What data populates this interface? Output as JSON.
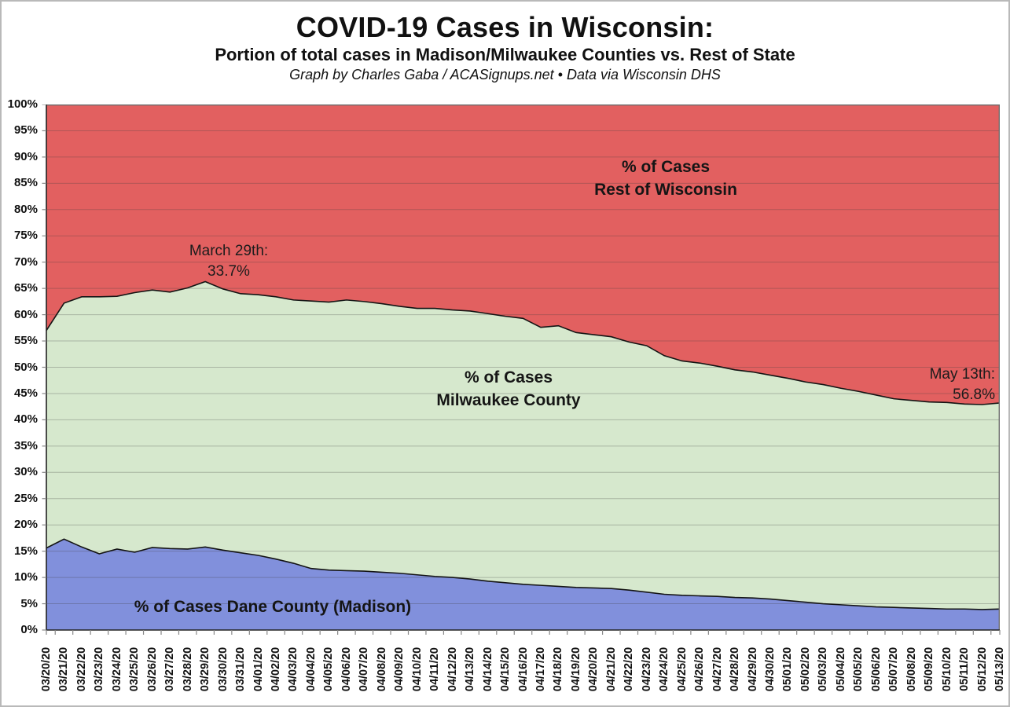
{
  "header": {
    "title": "COVID-19 Cases in Wisconsin:",
    "subtitle": "Portion of total cases in Madison/Milwaukee Counties vs. Rest of State",
    "credit": "Graph by Charles Gaba / ACASignups.net  •  Data via Wisconsin DHS"
  },
  "labels": {
    "rest": {
      "line1": "% of Cases",
      "line2": "Rest of Wisconsin"
    },
    "milwaukee": {
      "line1": "% of Cases",
      "line2": "Milwaukee County"
    },
    "dane": {
      "text": "% of Cases Dane County (Madison)"
    }
  },
  "annotations": {
    "march29": {
      "line1": "March 29th:",
      "line2": "33.7%"
    },
    "may13": {
      "line1": "May 13th:",
      "line2": "56.8%"
    }
  },
  "chart_data": {
    "type": "area",
    "stacked": true,
    "grid": true,
    "legend_position": "none",
    "x": [
      "03/20/20",
      "03/21/20",
      "03/22/20",
      "03/23/20",
      "03/24/20",
      "03/25/20",
      "03/26/20",
      "03/27/20",
      "03/28/20",
      "03/29/20",
      "03/30/20",
      "03/31/20",
      "04/01/20",
      "04/02/20",
      "04/03/20",
      "04/04/20",
      "04/05/20",
      "04/06/20",
      "04/07/20",
      "04/08/20",
      "04/09/20",
      "04/10/20",
      "04/11/20",
      "04/12/20",
      "04/13/20",
      "04/14/20",
      "04/15/20",
      "04/16/20",
      "04/17/20",
      "04/18/20",
      "04/19/20",
      "04/20/20",
      "04/21/20",
      "04/22/20",
      "04/23/20",
      "04/24/20",
      "04/25/20",
      "04/26/20",
      "04/27/20",
      "04/28/20",
      "04/29/20",
      "04/30/20",
      "05/01/20",
      "05/02/20",
      "05/03/20",
      "05/04/20",
      "05/05/20",
      "05/06/20",
      "05/07/20",
      "05/08/20",
      "05/09/20",
      "05/10/20",
      "05/11/20",
      "05/12/20",
      "05/13/20"
    ],
    "series": [
      {
        "name": "% of Cases Dane County (Madison)",
        "color": "#8190dc",
        "values": [
          15.6,
          17.3,
          15.8,
          14.5,
          15.4,
          14.8,
          15.7,
          15.5,
          15.4,
          15.8,
          15.2,
          14.7,
          14.2,
          13.5,
          12.7,
          11.7,
          11.4,
          11.3,
          11.2,
          11.0,
          10.8,
          10.5,
          10.2,
          10.0,
          9.7,
          9.3,
          9.0,
          8.7,
          8.5,
          8.3,
          8.1,
          8.0,
          7.9,
          7.6,
          7.2,
          6.8,
          6.6,
          6.5,
          6.4,
          6.2,
          6.1,
          5.9,
          5.6,
          5.3,
          5.0,
          4.8,
          4.6,
          4.4,
          4.3,
          4.2,
          4.1,
          4.0,
          4.0,
          3.9,
          4.0
        ]
      },
      {
        "name": "% of Cases Milwaukee County",
        "color": "#d6e8cd",
        "values": [
          41.4,
          44.9,
          47.6,
          48.9,
          48.1,
          49.4,
          49.0,
          48.8,
          49.7,
          50.5,
          49.7,
          49.3,
          49.6,
          49.9,
          50.1,
          50.9,
          51.0,
          51.5,
          51.3,
          51.1,
          50.8,
          50.7,
          51.0,
          50.9,
          51.0,
          50.9,
          50.7,
          50.6,
          49.1,
          49.6,
          48.5,
          48.2,
          47.9,
          47.2,
          46.9,
          45.4,
          44.6,
          44.3,
          43.8,
          43.3,
          43.0,
          42.6,
          42.3,
          41.9,
          41.7,
          41.2,
          40.8,
          40.3,
          39.7,
          39.5,
          39.3,
          39.3,
          39.0,
          39.0,
          39.2
        ]
      },
      {
        "name": "% of Cases Rest of Wisconsin",
        "color": "#e26060",
        "values": [
          43.0,
          37.8,
          36.6,
          36.6,
          36.5,
          35.8,
          35.3,
          35.7,
          34.9,
          33.7,
          35.1,
          36.0,
          36.2,
          36.6,
          37.2,
          37.4,
          37.6,
          37.2,
          37.5,
          37.9,
          38.4,
          38.8,
          38.8,
          39.1,
          39.3,
          39.8,
          40.3,
          40.7,
          42.4,
          42.1,
          43.4,
          43.8,
          44.2,
          45.2,
          45.9,
          47.8,
          48.8,
          49.2,
          49.8,
          50.5,
          50.9,
          51.5,
          52.1,
          52.8,
          53.3,
          54.0,
          54.6,
          55.3,
          56.0,
          56.3,
          56.6,
          56.7,
          57.0,
          57.1,
          56.8
        ]
      }
    ],
    "title": "COVID-19 Cases in Wisconsin: Portion of total cases in Madison/Milwaukee Counties vs. Rest of State",
    "xlabel": "",
    "ylabel": "",
    "ylim": [
      0,
      100
    ],
    "y_axis": {
      "min": 0,
      "max": 100,
      "step": 5,
      "tick_labels": [
        "0%",
        "5%",
        "10%",
        "15%",
        "20%",
        "25%",
        "30%",
        "35%",
        "40%",
        "45%",
        "50%",
        "55%",
        "60%",
        "65%",
        "70%",
        "75%",
        "80%",
        "85%",
        "90%",
        "95%",
        "100%"
      ]
    },
    "annotated_points": [
      {
        "x": "03/29/20",
        "series": "% of Cases Rest of Wisconsin",
        "value": 33.7
      },
      {
        "x": "05/13/20",
        "series": "% of Cases Rest of Wisconsin",
        "value": 56.8
      }
    ]
  }
}
